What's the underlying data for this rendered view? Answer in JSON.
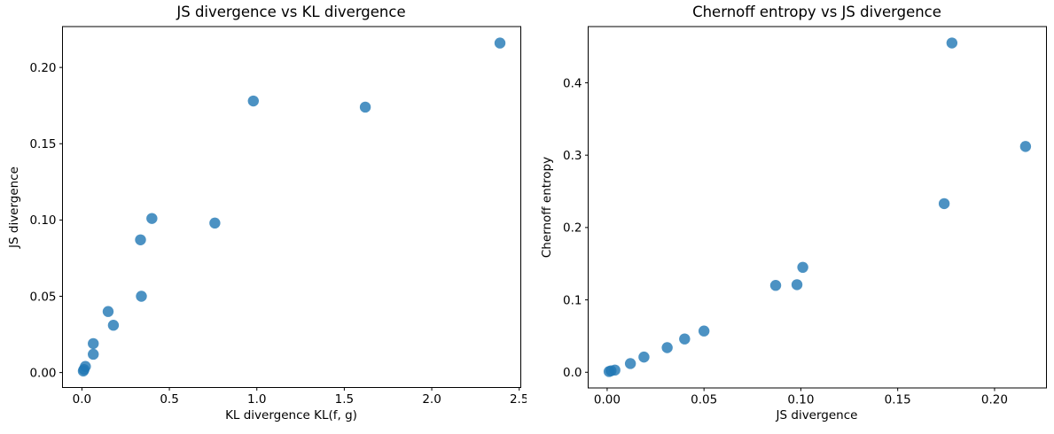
{
  "figure": {
    "background": "#ffffff",
    "marker_color": "#1f77b4",
    "marker_alpha": 0.8,
    "marker_radius": 6.2,
    "spine_color": "#000000",
    "text_color": "#000000"
  },
  "chart_data": [
    {
      "type": "scatter",
      "title": "JS divergence vs KL divergence",
      "xlabel": "KL divergence KL(f, g)",
      "ylabel": "JS divergence",
      "xlim": [
        -0.111,
        2.509
      ],
      "ylim": [
        -0.0098,
        0.2268
      ],
      "grid": false,
      "legend": null,
      "xticks": [
        0.0,
        0.5,
        1.0,
        1.5,
        2.0,
        2.5
      ],
      "xtick_labels": [
        "0.0",
        "0.5",
        "1.0",
        "1.5",
        "2.0",
        "2.5"
      ],
      "yticks": [
        0.0,
        0.05,
        0.1,
        0.15,
        0.2
      ],
      "ytick_labels": [
        "0.00",
        "0.05",
        "0.10",
        "0.15",
        "0.20"
      ],
      "points": [
        [
          2.39,
          0.216
        ],
        [
          1.62,
          0.174
        ],
        [
          0.98,
          0.178
        ],
        [
          0.76,
          0.098
        ],
        [
          0.4,
          0.101
        ],
        [
          0.335,
          0.087
        ],
        [
          0.34,
          0.05
        ],
        [
          0.18,
          0.031
        ],
        [
          0.15,
          0.04
        ],
        [
          0.065,
          0.019
        ],
        [
          0.065,
          0.012
        ],
        [
          0.02,
          0.004
        ],
        [
          0.012,
          0.002
        ],
        [
          0.008,
          0.001
        ]
      ]
    },
    {
      "type": "scatter",
      "title": "Chernoff entropy vs JS divergence",
      "xlabel": "JS divergence",
      "ylabel": "Chernoff entropy",
      "xlim": [
        -0.0098,
        0.2268
      ],
      "ylim": [
        -0.0217,
        0.4777
      ],
      "grid": false,
      "legend": null,
      "xticks": [
        0.0,
        0.05,
        0.1,
        0.15,
        0.2
      ],
      "xtick_labels": [
        "0.00",
        "0.05",
        "0.10",
        "0.15",
        "0.20"
      ],
      "yticks": [
        0.0,
        0.1,
        0.2,
        0.3,
        0.4
      ],
      "ytick_labels": [
        "0.0",
        "0.1",
        "0.2",
        "0.3",
        "0.4"
      ],
      "points": [
        [
          0.216,
          0.312
        ],
        [
          0.178,
          0.455
        ],
        [
          0.174,
          0.233
        ],
        [
          0.101,
          0.145
        ],
        [
          0.098,
          0.121
        ],
        [
          0.087,
          0.12
        ],
        [
          0.05,
          0.057
        ],
        [
          0.04,
          0.046
        ],
        [
          0.031,
          0.034
        ],
        [
          0.019,
          0.021
        ],
        [
          0.012,
          0.012
        ],
        [
          0.004,
          0.003
        ],
        [
          0.002,
          0.002
        ],
        [
          0.001,
          0.001
        ]
      ]
    }
  ]
}
